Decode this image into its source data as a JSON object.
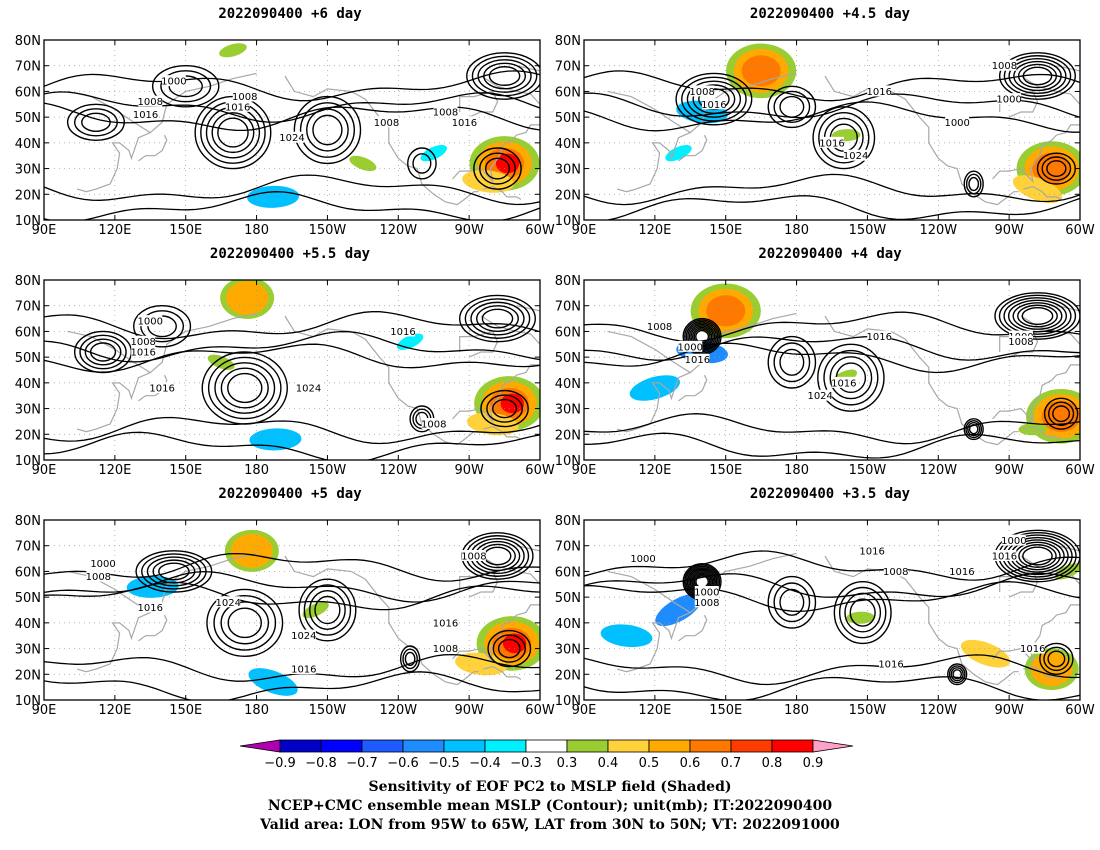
{
  "panels": [
    {
      "title": "2022090400  +6 day",
      "contour_labels": [
        "1000",
        "1008",
        "1016",
        "1016",
        "1008",
        "1024",
        "1008",
        "1008",
        "1016"
      ],
      "blobs": [
        {
          "cat": "pos",
          "level": 0.8,
          "lon": -75,
          "lat": 32
        },
        {
          "cat": "pos",
          "level": 0.4,
          "lon": -82,
          "lat": 25
        },
        {
          "cat": "pos",
          "level": 0.3,
          "lon": 170,
          "lat": 76
        },
        {
          "cat": "pos",
          "level": 0.3,
          "lon": -135,
          "lat": 32
        },
        {
          "cat": "neg",
          "level": -0.4,
          "lon": -173,
          "lat": 19
        },
        {
          "cat": "neg",
          "level": -0.3,
          "lon": -105,
          "lat": 36
        }
      ]
    },
    {
      "title": "2022090400  +4.5 day",
      "contour_labels": [
        "1008",
        "1000",
        "1016",
        "1008",
        "1016",
        "1016",
        "1024",
        "1000"
      ],
      "blobs": [
        {
          "cat": "pos",
          "level": 0.6,
          "lon": 165,
          "lat": 68
        },
        {
          "cat": "neg",
          "level": -0.4,
          "lon": 140,
          "lat": 52
        },
        {
          "cat": "pos",
          "level": 0.6,
          "lon": -72,
          "lat": 30
        },
        {
          "cat": "pos",
          "level": 0.4,
          "lon": -78,
          "lat": 22
        },
        {
          "cat": "pos",
          "level": 0.3,
          "lon": -159,
          "lat": 43
        },
        {
          "cat": "neg",
          "level": -0.3,
          "lon": 130,
          "lat": 36
        }
      ]
    },
    {
      "title": "2022090400  +5.5 day",
      "contour_labels": [
        "1000",
        "1008",
        "1016",
        "1016",
        "1016",
        "1024",
        "1008"
      ],
      "blobs": [
        {
          "cat": "pos",
          "level": 0.8,
          "lon": -73,
          "lat": 32
        },
        {
          "cat": "pos",
          "level": 0.4,
          "lon": -80,
          "lat": 24
        },
        {
          "cat": "pos",
          "level": 0.5,
          "lon": 176,
          "lat": 73
        },
        {
          "cat": "pos",
          "level": 0.3,
          "lon": 165,
          "lat": 48
        },
        {
          "cat": "neg",
          "level": -0.4,
          "lon": -172,
          "lat": 18
        },
        {
          "cat": "neg",
          "level": -0.3,
          "lon": -115,
          "lat": 56
        }
      ]
    },
    {
      "title": "2022090400  +4 day",
      "contour_labels": [
        "1008",
        "1000",
        "1016",
        "1016",
        "1016",
        "1024",
        "1000",
        "1008"
      ],
      "blobs": [
        {
          "cat": "pos",
          "level": 0.6,
          "lon": 150,
          "lat": 68
        },
        {
          "cat": "neg",
          "level": -0.5,
          "lon": 140,
          "lat": 52
        },
        {
          "cat": "neg",
          "level": -0.4,
          "lon": 120,
          "lat": 38
        },
        {
          "cat": "pos",
          "level": 0.6,
          "lon": -68,
          "lat": 27
        },
        {
          "cat": "pos",
          "level": 0.3,
          "lon": -80,
          "lat": 22
        },
        {
          "cat": "pos",
          "level": 0.3,
          "lon": -160,
          "lat": 42
        }
      ]
    },
    {
      "title": "2022090400  +5 day",
      "contour_labels": [
        "1008",
        "1000",
        "1008",
        "1016",
        "1024",
        "1024",
        "1016",
        "1008",
        "1016"
      ],
      "blobs": [
        {
          "cat": "pos",
          "level": 0.8,
          "lon": -72,
          "lat": 32
        },
        {
          "cat": "pos",
          "level": 0.4,
          "lon": -85,
          "lat": 24
        },
        {
          "cat": "pos",
          "level": 0.5,
          "lon": 178,
          "lat": 68
        },
        {
          "cat": "neg",
          "level": -0.4,
          "lon": -173,
          "lat": 17
        },
        {
          "cat": "neg",
          "level": -0.4,
          "lon": 136,
          "lat": 54
        },
        {
          "cat": "pos",
          "level": 0.3,
          "lon": -155,
          "lat": 45
        }
      ]
    },
    {
      "title": "2022090400  +3.5 day",
      "contour_labels": [
        "1000",
        "1016",
        "1008",
        "1000",
        "1016",
        "1016",
        "1008",
        "1000",
        "1016",
        "1016"
      ],
      "blobs": [
        {
          "cat": "neg",
          "level": -0.5,
          "lon": 130,
          "lat": 45
        },
        {
          "cat": "neg",
          "level": -0.4,
          "lon": 108,
          "lat": 35
        },
        {
          "cat": "pos",
          "level": 0.5,
          "lon": -72,
          "lat": 22
        },
        {
          "cat": "pos",
          "level": 0.4,
          "lon": -100,
          "lat": 28
        },
        {
          "cat": "pos",
          "level": 0.3,
          "lon": -153,
          "lat": 42
        },
        {
          "cat": "pos",
          "level": 0.3,
          "lon": -65,
          "lat": 60
        }
      ]
    }
  ],
  "axes": {
    "lon_labels": [
      "90E",
      "120E",
      "150E",
      "180",
      "150W",
      "120W",
      "90W",
      "60W"
    ],
    "lat_labels": [
      "10N",
      "20N",
      "30N",
      "40N",
      "50N",
      "60N",
      "70N",
      "80N"
    ]
  },
  "map_extent": {
    "lon": [
      90,
      300
    ],
    "lat": [
      10,
      80
    ]
  },
  "colorbar": {
    "labels": [
      "-0.9",
      "-0.8",
      "-0.7",
      "-0.6",
      "-0.5",
      "-0.4",
      "-0.3",
      "0.3",
      "0.4",
      "0.5",
      "0.6",
      "0.7",
      "0.8",
      "0.9"
    ],
    "colors": [
      "#b000b0",
      "#0000c8",
      "#0000ff",
      "#1e5aff",
      "#1e8cff",
      "#00c0ff",
      "#00f0ff",
      "#ffffff",
      "#9acd32",
      "#ffd23c",
      "#ffaa00",
      "#ff7800",
      "#ff3c00",
      "#ff0000",
      "#ffa0c8"
    ]
  },
  "caption": {
    "line1": "Sensitivity of EOF PC2 to MSLP field (Shaded)",
    "line2": "NCEP+CMC ensemble mean MSLP (Contour); unit(mb); IT:2022090400",
    "line3": "Valid area: LON from 95W to 65W, LAT from 30N to 50N; VT: 2022091000"
  }
}
